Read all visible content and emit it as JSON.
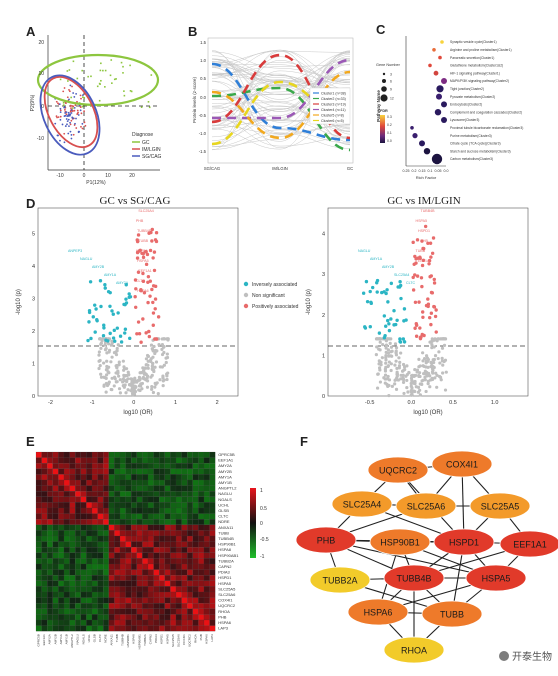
{
  "panels": {
    "A": {
      "label": "A",
      "xlabel": "P1(12%)",
      "ylabel": "P2(9%)",
      "xticks": [
        "-10",
        "0",
        "10",
        "20"
      ],
      "yticks": [
        "20",
        "10",
        "0",
        "-10"
      ],
      "legend_title": "Diagnose",
      "legend": [
        {
          "name": "GC",
          "color": "#8dc63f"
        },
        {
          "name": "IM/LGIN",
          "color": "#d84f4f"
        },
        {
          "name": "SG/CAG",
          "color": "#4a5bbd"
        }
      ]
    },
    "B": {
      "label": "B",
      "ylabel": "Protein levels (z-score)",
      "yticks": [
        "1.5",
        "1.0",
        "0.5",
        "0.0",
        "-0.5",
        "-1.0",
        "-1.5"
      ],
      "xticks": [
        "SG/CAG",
        "IM/LGIN",
        "GC"
      ],
      "legend": [
        {
          "name": "Cluster1 (n=38)",
          "color": "#2f7fd8"
        },
        {
          "name": "Cluster2 (n=33)",
          "color": "#3aa84a"
        },
        {
          "name": "Cluster3 (n=19)",
          "color": "#d93b3b"
        },
        {
          "name": "Cluster4 (n=11)",
          "color": "#9b59b6"
        },
        {
          "name": "Cluster5 (n=8)",
          "color": "#f2a81d"
        },
        {
          "name": "Cluster6 (n=5)",
          "color": "#e8d61e"
        }
      ]
    },
    "C": {
      "label": "C",
      "ylabel": "Pathway Name",
      "xlabel": "Rich Factor",
      "xticks": [
        "0.25",
        "0.2",
        "0.15",
        "0.1",
        "0.05",
        "0.0"
      ],
      "legend_size_title": "Gene Number",
      "legend_size_values": [
        "3",
        "6",
        "9",
        "12"
      ],
      "legend_color_title": "FDR",
      "legend_color_ticks": [
        "0.3",
        "0.2",
        "0.1",
        "0.0"
      ],
      "pathways": [
        "Synaptic vesicle cycle(Cluster1)",
        "Arginine and proline metabolism(Cluster1)",
        "Pancreatic secretion(Cluster1)",
        "Glutathione metabolism(Cluster1&2)",
        "HIF-1 signaling pathway(Cluster1)",
        "MAPK/PI3K signaling pathway(Cluster2)",
        "Tight junction(Cluster2)",
        "Pyruvate metabolism(Cluster2)",
        "Endocytosis(Cluster2)",
        "Complement and coagulation cascades(Cluster2)",
        "Lysosome(Cluster3)",
        "Proximal tubule bicarbonate reclamation(Cluster3)",
        "Purine metabolism(Cluster3)",
        "Citrate cycle (TCA cycle)(Cluster3)",
        "Starch and sucrose metabolism(Cluster3)",
        "Carbon metabolism(Cluster3)"
      ]
    },
    "D": {
      "label": "D",
      "left_title": "GC vs SG/CAG",
      "right_title": "GC vs IM/LGIN",
      "ylabel": "-log10 (p)",
      "xlabel": "log10 (OR)",
      "left_xticks": [
        "-2",
        "-1",
        "0",
        "1",
        "2"
      ],
      "left_yticks": [
        "0",
        "1",
        "2",
        "3",
        "4",
        "5"
      ],
      "right_xticks": [
        "-0.5",
        "0.0",
        "0.5",
        "1.0"
      ],
      "right_yticks": [
        "0",
        "1",
        "2",
        "3",
        "4"
      ],
      "legend": [
        {
          "name": "Inversely associated",
          "color": "#2bb5c4"
        },
        {
          "name": "Non significant",
          "color": "#bfbfbf"
        },
        {
          "name": "Positively associated",
          "color": "#e86b6b"
        }
      ],
      "left_labels": [
        "ANPEP3",
        "NAGLU",
        "AMY2B",
        "AMY1A",
        "AMY2A",
        "SLC25A4",
        "PHB",
        "TUBB4B",
        "TUBB",
        "HSPD1",
        "HSPA5",
        "EEF1A1",
        "CLTC",
        "HSPA6"
      ],
      "right_labels": [
        "NAGLU",
        "AMY1A",
        "AMY2B",
        "SLC25A4",
        "CLTC",
        "TUBB4B",
        "HSPA5",
        "HSPD1",
        "PHB",
        "TUBB",
        "EEF1A1"
      ]
    },
    "E": {
      "label": "E",
      "colorbar_ticks": [
        "1",
        "0.5",
        "0",
        "-0.5",
        "-1"
      ],
      "row_labels": [
        "GPRC5B",
        "EEF1A1",
        "AMY2A",
        "AMY2B",
        "AMY1A",
        "AMY1B",
        "ANGPTL2",
        "NAGLU",
        "NGALS",
        "UCHL",
        "GLSB",
        "CLTC",
        "NDRE",
        "ANXA11",
        "TUBB",
        "TUBB4B",
        "HSP90B1",
        "HSPA8",
        "HSP90AB1",
        "TUBB2A",
        "CAPN2",
        "PDIA3",
        "HSPD1",
        "HSPA5",
        "SLC25A5",
        "SLC25A6",
        "COX4I1",
        "UQCRC2",
        "RHOA",
        "PHB",
        "HSPA6",
        "LAP3"
      ]
    },
    "F": {
      "label": "F",
      "nodes": [
        "UQCRC2",
        "COX4I1",
        "SLC25A4",
        "SLC25A6",
        "SLC25A5",
        "PHB",
        "HSP90B1",
        "HSPD1",
        "EEF1A1",
        "TUBB2A",
        "TUBB4B",
        "HSPA5",
        "HSPA6",
        "TUBB",
        "RHOA"
      ]
    }
  },
  "watermark": "开泰生物"
}
